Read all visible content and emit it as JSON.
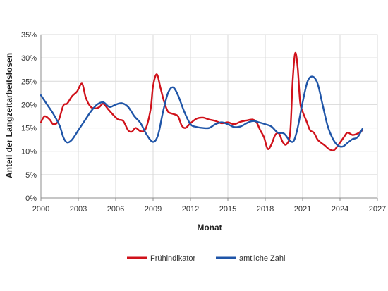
{
  "colors": {
    "fruehindikator": "#d0121b",
    "amtliche_zahl": "#1f55a8",
    "grid": "#d9d9d9",
    "axis": "#8c8c8c"
  },
  "chart_data": {
    "type": "line",
    "title": "",
    "xlabel": "Monat",
    "ylabel": "Anteil der Langzeitarbeitslosen",
    "xlim": [
      2000,
      2027
    ],
    "ylim": [
      0,
      35
    ],
    "x_ticks": [
      2000,
      2003,
      2006,
      2009,
      2012,
      2015,
      2018,
      2021,
      2024,
      2027
    ],
    "y_ticks": [
      "0%",
      "5%",
      "10%",
      "15%",
      "20%",
      "25%",
      "30%",
      "35%"
    ],
    "y_tick_values": [
      0,
      5,
      10,
      15,
      20,
      25,
      30,
      35
    ],
    "grid": true,
    "legend_position": "bottom",
    "series": [
      {
        "name": "Frühindikator",
        "color": "#d0121b",
        "points": [
          [
            2000.0,
            16.2
          ],
          [
            2000.3,
            17.5
          ],
          [
            2000.7,
            16.8
          ],
          [
            2001.0,
            15.8
          ],
          [
            2001.4,
            16.5
          ],
          [
            2001.8,
            19.8
          ],
          [
            2002.1,
            20.2
          ],
          [
            2002.5,
            21.8
          ],
          [
            2002.9,
            22.8
          ],
          [
            2003.3,
            24.5
          ],
          [
            2003.6,
            21.5
          ],
          [
            2004.0,
            19.5
          ],
          [
            2004.4,
            19.2
          ],
          [
            2004.7,
            19.5
          ],
          [
            2005.0,
            20.2
          ],
          [
            2005.4,
            19.0
          ],
          [
            2005.8,
            17.8
          ],
          [
            2006.2,
            16.8
          ],
          [
            2006.6,
            16.5
          ],
          [
            2007.0,
            14.5
          ],
          [
            2007.3,
            14.2
          ],
          [
            2007.6,
            15.0
          ],
          [
            2008.0,
            14.3
          ],
          [
            2008.4,
            14.8
          ],
          [
            2008.8,
            19.0
          ],
          [
            2009.0,
            24.0
          ],
          [
            2009.3,
            26.5
          ],
          [
            2009.6,
            23.5
          ],
          [
            2009.9,
            20.5
          ],
          [
            2010.2,
            18.5
          ],
          [
            2010.6,
            18.0
          ],
          [
            2011.0,
            17.5
          ],
          [
            2011.3,
            15.5
          ],
          [
            2011.6,
            15.0
          ],
          [
            2012.0,
            16.0
          ],
          [
            2012.5,
            17.0
          ],
          [
            2013.0,
            17.2
          ],
          [
            2013.5,
            16.8
          ],
          [
            2014.0,
            16.5
          ],
          [
            2014.5,
            16.0
          ],
          [
            2015.0,
            16.2
          ],
          [
            2015.5,
            15.8
          ],
          [
            2016.0,
            16.3
          ],
          [
            2016.5,
            16.6
          ],
          [
            2017.0,
            16.8
          ],
          [
            2017.3,
            16.2
          ],
          [
            2017.6,
            14.5
          ],
          [
            2017.9,
            13.0
          ],
          [
            2018.2,
            10.5
          ],
          [
            2018.5,
            11.5
          ],
          [
            2018.8,
            13.5
          ],
          [
            2019.1,
            13.8
          ],
          [
            2019.4,
            12.0
          ],
          [
            2019.7,
            11.5
          ],
          [
            2020.0,
            14.0
          ],
          [
            2020.2,
            25.0
          ],
          [
            2020.4,
            31.0
          ],
          [
            2020.6,
            28.0
          ],
          [
            2020.8,
            20.5
          ],
          [
            2021.0,
            18.5
          ],
          [
            2021.3,
            16.5
          ],
          [
            2021.6,
            14.5
          ],
          [
            2021.9,
            14.0
          ],
          [
            2022.2,
            12.5
          ],
          [
            2022.5,
            11.8
          ],
          [
            2022.8,
            11.2
          ],
          [
            2023.1,
            10.5
          ],
          [
            2023.5,
            10.2
          ],
          [
            2023.9,
            11.5
          ],
          [
            2024.3,
            13.0
          ],
          [
            2024.6,
            14.0
          ],
          [
            2025.0,
            13.5
          ],
          [
            2025.4,
            13.8
          ],
          [
            2025.8,
            14.5
          ]
        ]
      },
      {
        "name": "amtliche Zahl",
        "color": "#1f55a8",
        "points": [
          [
            2000.0,
            22.0
          ],
          [
            2000.5,
            20.0
          ],
          [
            2001.0,
            18.0
          ],
          [
            2001.5,
            15.5
          ],
          [
            2001.8,
            13.0
          ],
          [
            2002.1,
            11.9
          ],
          [
            2002.5,
            12.5
          ],
          [
            2003.0,
            14.5
          ],
          [
            2003.5,
            16.5
          ],
          [
            2004.0,
            18.5
          ],
          [
            2004.5,
            20.0
          ],
          [
            2005.0,
            20.5
          ],
          [
            2005.5,
            19.5
          ],
          [
            2006.0,
            20.0
          ],
          [
            2006.5,
            20.3
          ],
          [
            2007.0,
            19.5
          ],
          [
            2007.5,
            17.5
          ],
          [
            2008.0,
            16.0
          ],
          [
            2008.5,
            13.5
          ],
          [
            2009.0,
            12.0
          ],
          [
            2009.4,
            13.5
          ],
          [
            2009.8,
            18.5
          ],
          [
            2010.2,
            22.5
          ],
          [
            2010.6,
            23.7
          ],
          [
            2011.0,
            22.0
          ],
          [
            2011.5,
            18.5
          ],
          [
            2012.0,
            15.8
          ],
          [
            2012.5,
            15.2
          ],
          [
            2013.0,
            15.0
          ],
          [
            2013.5,
            15.0
          ],
          [
            2014.0,
            15.8
          ],
          [
            2014.5,
            16.2
          ],
          [
            2015.0,
            15.8
          ],
          [
            2015.5,
            15.2
          ],
          [
            2016.0,
            15.3
          ],
          [
            2016.5,
            16.0
          ],
          [
            2017.0,
            16.5
          ],
          [
            2017.5,
            16.2
          ],
          [
            2018.0,
            15.8
          ],
          [
            2018.5,
            15.3
          ],
          [
            2019.0,
            14.0
          ],
          [
            2019.5,
            13.8
          ],
          [
            2020.0,
            12.2
          ],
          [
            2020.3,
            12.3
          ],
          [
            2020.6,
            15.0
          ],
          [
            2021.0,
            20.5
          ],
          [
            2021.4,
            25.0
          ],
          [
            2021.8,
            26.0
          ],
          [
            2022.2,
            24.5
          ],
          [
            2022.6,
            20.0
          ],
          [
            2023.0,
            15.5
          ],
          [
            2023.4,
            12.8
          ],
          [
            2023.8,
            11.3
          ],
          [
            2024.2,
            11.0
          ],
          [
            2024.6,
            11.8
          ],
          [
            2025.0,
            12.6
          ],
          [
            2025.4,
            13.0
          ],
          [
            2025.8,
            14.8
          ]
        ]
      }
    ]
  }
}
